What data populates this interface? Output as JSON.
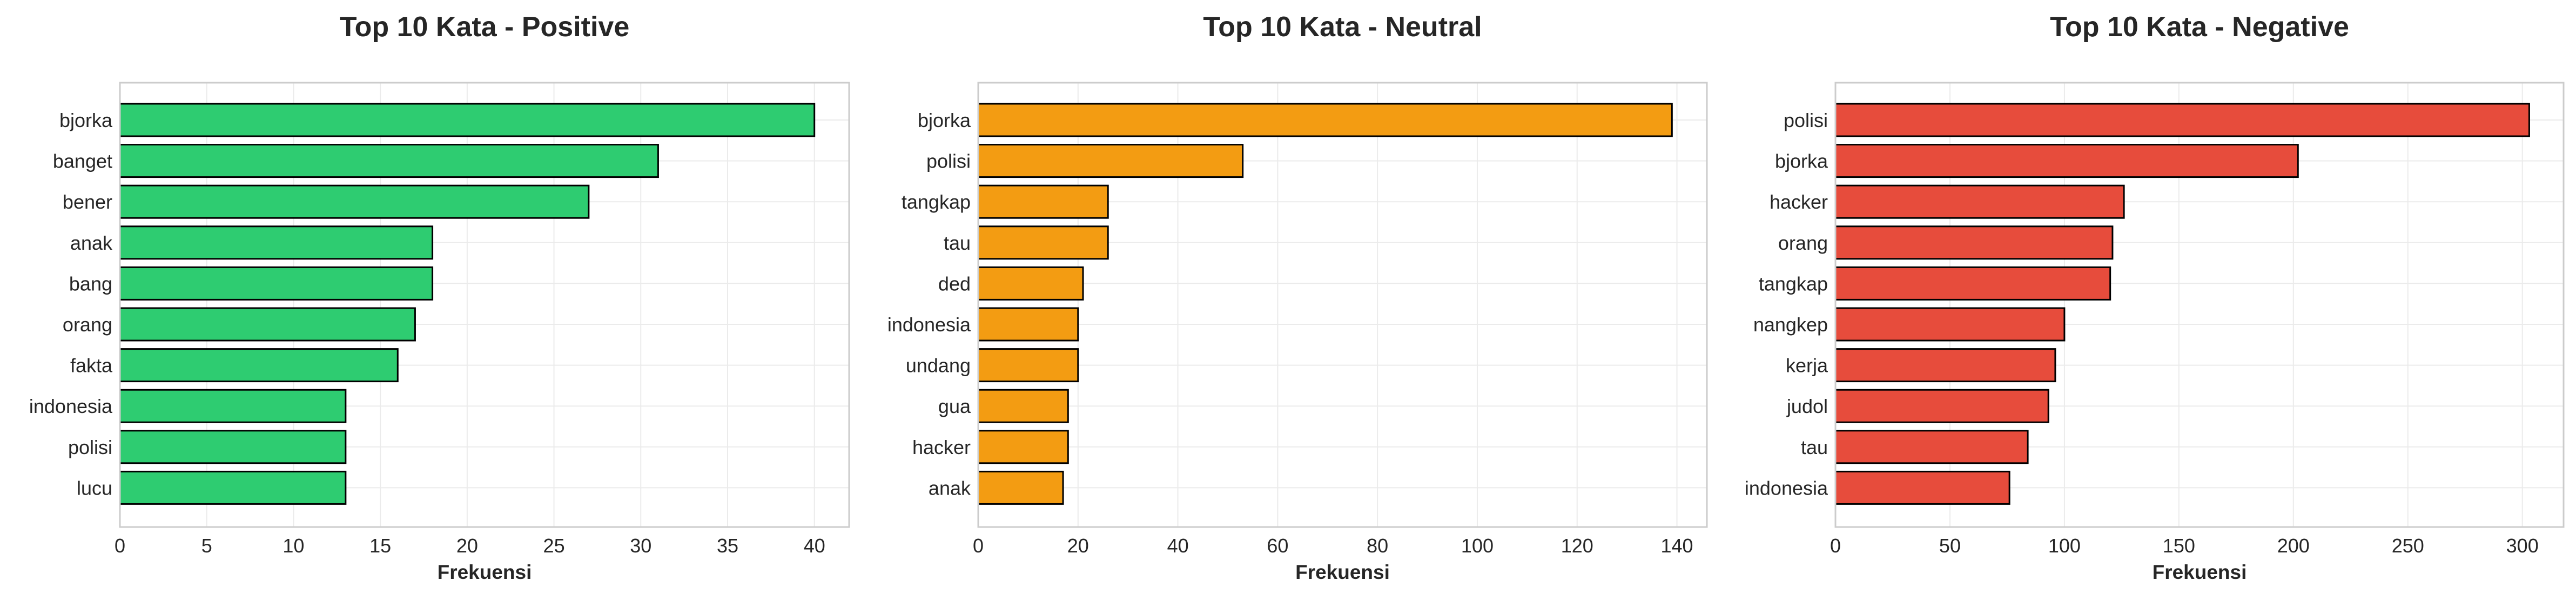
{
  "chart_data": [
    {
      "type": "bar",
      "orientation": "horizontal",
      "title": "Top 10 Kata - Positive",
      "xlabel": "Frekuensi",
      "ylabel": "",
      "categories": [
        "bjorka",
        "banget",
        "bener",
        "anak",
        "bang",
        "orang",
        "fakta",
        "indonesia",
        "polisi",
        "lucu"
      ],
      "values": [
        40,
        31,
        27,
        18,
        18,
        17,
        16,
        13,
        13,
        13
      ],
      "xlim": [
        0,
        42
      ],
      "xticks": [
        0,
        5,
        10,
        15,
        20,
        25,
        30,
        35,
        40
      ],
      "grid": true,
      "color": "#2ecc71"
    },
    {
      "type": "bar",
      "orientation": "horizontal",
      "title": "Top 10 Kata - Neutral",
      "xlabel": "Frekuensi",
      "ylabel": "",
      "categories": [
        "bjorka",
        "polisi",
        "tangkap",
        "tau",
        "ded",
        "indonesia",
        "undang",
        "gua",
        "hacker",
        "anak"
      ],
      "values": [
        139,
        53,
        26,
        26,
        21,
        20,
        20,
        18,
        18,
        17
      ],
      "xlim": [
        0,
        146
      ],
      "xticks": [
        0,
        20,
        40,
        60,
        80,
        100,
        120,
        140
      ],
      "grid": true,
      "color": "#f39c12"
    },
    {
      "type": "bar",
      "orientation": "horizontal",
      "title": "Top 10 Kata - Negative",
      "xlabel": "Frekuensi",
      "ylabel": "",
      "categories": [
        "polisi",
        "bjorka",
        "hacker",
        "orang",
        "tangkap",
        "nangkep",
        "kerja",
        "judol",
        "tau",
        "indonesia"
      ],
      "values": [
        303,
        202,
        126,
        121,
        120,
        100,
        96,
        93,
        84,
        76
      ],
      "xlim": [
        0,
        318
      ],
      "xticks": [
        0,
        50,
        100,
        150,
        200,
        250,
        300
      ],
      "grid": true,
      "color": "#e74c3c"
    }
  ]
}
